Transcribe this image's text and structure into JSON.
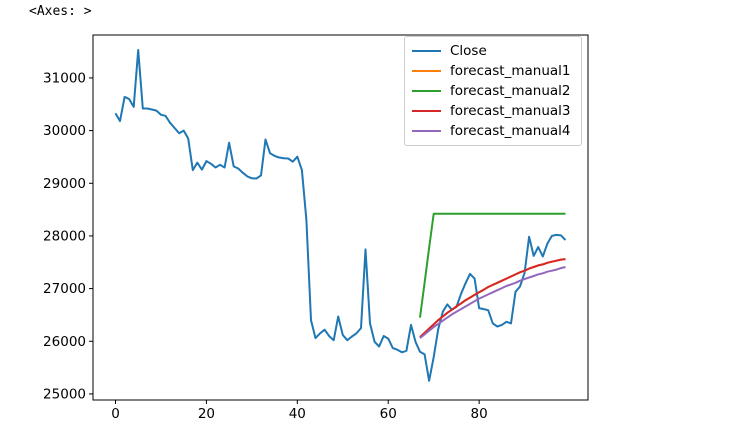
{
  "window": {
    "title_text": "<Axes: >"
  },
  "chart_data": {
    "type": "line",
    "title": "",
    "xlabel": "",
    "ylabel": "",
    "grid": false,
    "legend_position": "upper-right",
    "x_ticks": [
      0,
      20,
      40,
      60,
      80
    ],
    "y_ticks": [
      25000,
      26000,
      27000,
      28000,
      29000,
      30000,
      31000
    ],
    "xlim": [
      -4.95,
      103.95
    ],
    "ylim": [
      24885,
      31815
    ],
    "series": [
      {
        "name": "Close",
        "color": "#1f77b4",
        "start_x": 0,
        "values": [
          30330,
          30180,
          30640,
          30600,
          30450,
          31530,
          30420,
          30420,
          30400,
          30380,
          30300,
          30280,
          30150,
          30050,
          29950,
          30000,
          29850,
          29250,
          29390,
          29260,
          29420,
          29370,
          29300,
          29350,
          29300,
          29770,
          29320,
          29280,
          29200,
          29130,
          29095,
          29090,
          29150,
          29830,
          29570,
          29520,
          29490,
          29475,
          29470,
          29410,
          29505,
          29250,
          28300,
          26400,
          26060,
          26150,
          26220,
          26100,
          26020,
          26470,
          26120,
          26020,
          26090,
          26150,
          26250,
          27745,
          26340,
          25990,
          25900,
          26100,
          26050,
          25870,
          25840,
          25790,
          25820,
          26310,
          25990,
          25800,
          25750,
          25250,
          25700,
          26230,
          26560,
          26700,
          26600,
          26650,
          26900,
          27100,
          27280,
          27190,
          26630,
          26610,
          26590,
          26340,
          26280,
          26310,
          26370,
          26340,
          26940,
          27040,
          27300,
          27985,
          27620,
          27790,
          27610,
          27850,
          28000,
          28020,
          28010,
          27920
        ]
      },
      {
        "name": "forecast_manual1",
        "color": "#ff7f0e",
        "start_x": 67,
        "values": [
          26080,
          26160,
          26240,
          26320,
          26400,
          26470,
          26540,
          26600,
          26660,
          26720,
          26780,
          26830,
          26880,
          26930,
          26980,
          27030,
          27070,
          27110,
          27150,
          27190,
          27230,
          27270,
          27310,
          27340,
          27380,
          27410,
          27440,
          27460,
          27490,
          27510,
          27530,
          27550,
          27560
        ]
      },
      {
        "name": "forecast_manual2",
        "color": "#2ca02c",
        "start_x": 67,
        "values": [
          26450,
          27110,
          27770,
          28420,
          28420,
          28420,
          28420,
          28420,
          28420,
          28420,
          28420,
          28420,
          28420,
          28420,
          28420,
          28420,
          28420,
          28420,
          28420,
          28420,
          28420,
          28420,
          28420,
          28420,
          28420,
          28420,
          28420,
          28420,
          28420,
          28420,
          28420,
          28420,
          28420
        ]
      },
      {
        "name": "forecast_manual3",
        "color": "#d62728",
        "start_x": 67,
        "values": [
          26080,
          26160,
          26240,
          26320,
          26400,
          26470,
          26540,
          26600,
          26660,
          26720,
          26780,
          26830,
          26880,
          26930,
          26980,
          27030,
          27070,
          27110,
          27150,
          27190,
          27230,
          27270,
          27310,
          27340,
          27380,
          27410,
          27440,
          27460,
          27490,
          27510,
          27530,
          27550,
          27560
        ]
      },
      {
        "name": "forecast_manual4",
        "color": "#9467bd",
        "start_x": 67,
        "values": [
          26060,
          26130,
          26200,
          26270,
          26330,
          26390,
          26450,
          26510,
          26560,
          26610,
          26660,
          26710,
          26760,
          26810,
          26850,
          26890,
          26930,
          26970,
          27010,
          27050,
          27080,
          27110,
          27150,
          27180,
          27210,
          27240,
          27270,
          27290,
          27320,
          27340,
          27360,
          27390,
          27410
        ]
      }
    ]
  }
}
